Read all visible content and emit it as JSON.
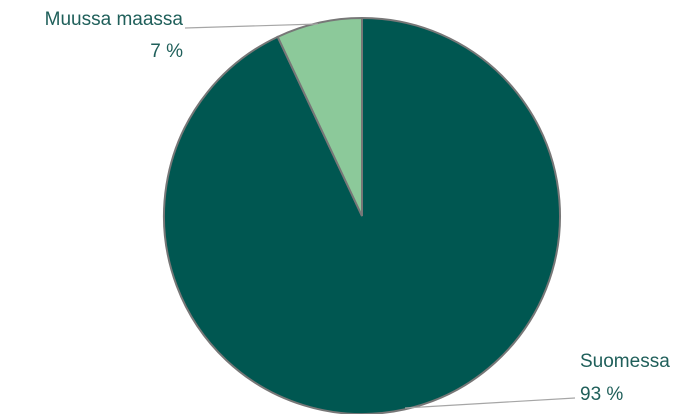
{
  "chart_data": {
    "type": "pie",
    "categories": [
      "Suomessa",
      "Muussa maassa"
    ],
    "values": [
      93,
      7
    ],
    "value_labels": [
      "93 %",
      "7 %"
    ],
    "colors": [
      "#005751",
      "#8cc99a"
    ],
    "start_angle": 0,
    "direction": "clockwise"
  }
}
